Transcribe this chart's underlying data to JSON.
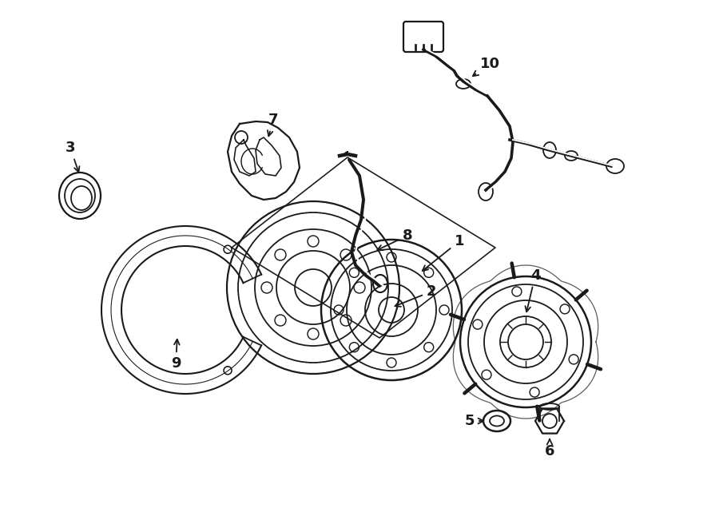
{
  "bg_color": "#ffffff",
  "line_color": "#1a1a1a",
  "lw": 1.3,
  "fig_width": 9.0,
  "fig_height": 6.61,
  "dpi": 100,
  "xlim": [
    0,
    900
  ],
  "ylim": [
    0,
    661
  ]
}
